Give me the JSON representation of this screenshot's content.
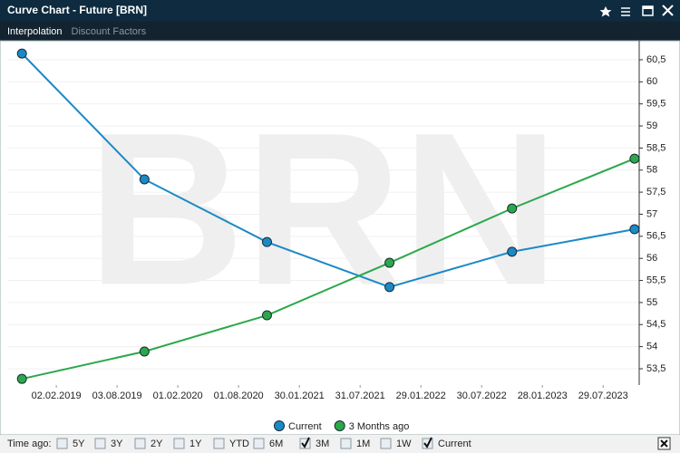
{
  "window": {
    "title": "Curve Chart - Future [BRN]"
  },
  "tabs": [
    {
      "label": "Interpolation",
      "active": true
    },
    {
      "label": "Discount Factors",
      "active": false
    }
  ],
  "chart_data": {
    "type": "line",
    "watermark": "BRN",
    "x": [
      "2018-10-22",
      "2019-10-24",
      "2020-10-25",
      "2021-10-27",
      "2022-10-29",
      "2023-10-31"
    ],
    "series": [
      {
        "name": "Current",
        "color": "#1a8ac6",
        "values": [
          60.64,
          57.79,
          56.37,
          55.35,
          56.15,
          56.66
        ]
      },
      {
        "name": "3 Months ago",
        "color": "#2aa84a",
        "values": [
          53.27,
          53.89,
          54.71,
          55.9,
          57.13,
          58.26
        ]
      }
    ],
    "xlim": [
      "2018-09-08",
      "2023-11-14"
    ],
    "xticks": [
      {
        "value": "2019-02-02",
        "label": "02.02.2019"
      },
      {
        "value": "2019-08-03",
        "label": "03.08.2019"
      },
      {
        "value": "2020-02-01",
        "label": "01.02.2020"
      },
      {
        "value": "2020-08-01",
        "label": "01.08.2020"
      },
      {
        "value": "2021-01-30",
        "label": "30.01.2021"
      },
      {
        "value": "2021-07-31",
        "label": "31.07.2021"
      },
      {
        "value": "2022-01-29",
        "label": "29.01.2022"
      },
      {
        "value": "2022-07-30",
        "label": "30.07.2022"
      },
      {
        "value": "2023-01-28",
        "label": "28.01.2023"
      },
      {
        "value": "2023-07-29",
        "label": "29.07.2023"
      }
    ],
    "ylim": [
      53.13,
      60.93
    ],
    "yticks": [
      {
        "value": 53.5,
        "label": "53,5"
      },
      54,
      {
        "value": 54.5,
        "label": "54,5"
      },
      55,
      {
        "value": 55.5,
        "label": "55,5"
      },
      56,
      {
        "value": 56.5,
        "label": "56,5"
      },
      57,
      {
        "value": 57.5,
        "label": "57,5"
      },
      58,
      {
        "value": 58.5,
        "label": "58,5"
      },
      59,
      {
        "value": 59.5,
        "label": "59,5"
      },
      60,
      {
        "value": 60.5,
        "label": "60,5"
      }
    ],
    "grid": true,
    "legend": "bottom"
  },
  "time_ago": {
    "label": "Time ago:",
    "options": [
      {
        "label": "5Y",
        "checked": false
      },
      {
        "label": "3Y",
        "checked": false
      },
      {
        "label": "2Y",
        "checked": false
      },
      {
        "label": "1Y",
        "checked": false
      },
      {
        "label": "YTD",
        "checked": false
      },
      {
        "label": "6M",
        "checked": false
      },
      {
        "label": "3M",
        "checked": true
      },
      {
        "label": "1M",
        "checked": false
      },
      {
        "label": "1W",
        "checked": false
      },
      {
        "label": "Current",
        "checked": true
      }
    ]
  }
}
